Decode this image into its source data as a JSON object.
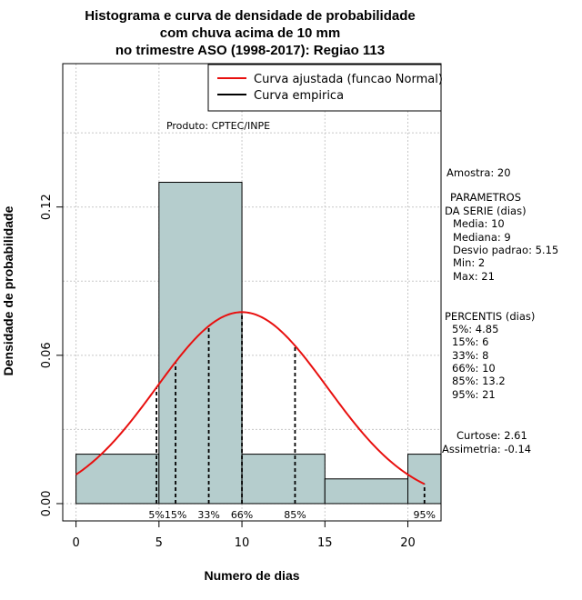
{
  "chart_data": {
    "type": "bar",
    "title_lines": [
      "Histograma e curva de densidade de probabilidade",
      "com chuva acima de 10 mm",
      "no trimestre ASO (1998-2017): Regiao 113"
    ],
    "xlabel": "Numero de dias",
    "ylabel": "Densidade de probabilidade",
    "xlim": [
      -0.8,
      22
    ],
    "ylim": [
      -0.007,
      0.178
    ],
    "x_ticks": [
      0,
      5,
      10,
      15,
      20
    ],
    "x_tick_labels": [
      "0",
      "5",
      "10",
      "15",
      "20"
    ],
    "y_ticks": [
      0.0,
      0.06,
      0.12
    ],
    "y_tick_labels": [
      "0.00",
      "0.06",
      "0.12"
    ],
    "grid": true,
    "grid_x": [
      0,
      5,
      10,
      15,
      20
    ],
    "grid_y": [
      0.0,
      0.03,
      0.06,
      0.09,
      0.12,
      0.15
    ],
    "histogram_bins": [
      {
        "x0": 0,
        "x1": 5,
        "density": 0.02
      },
      {
        "x0": 5,
        "x1": 10,
        "density": 0.13
      },
      {
        "x0": 10,
        "x1": 15,
        "density": 0.02
      },
      {
        "x0": 15,
        "x1": 20,
        "density": 0.01
      },
      {
        "x0": 20,
        "x1": 22,
        "density": 0.02
      }
    ],
    "fitted_curve": {
      "name": "Curva ajustada (funcao Normal)",
      "mean": 10,
      "sd": 5.15,
      "x_range": [
        0,
        21
      ],
      "color": "#e8100f"
    },
    "empirical_curve": {
      "name": "Curva empirica",
      "color": "#000000"
    },
    "legend": {
      "placement": "top-right",
      "entries": [
        "Curva ajustada (funcao Normal)",
        "Curva empirica"
      ]
    },
    "percentile_lines": [
      {
        "label": "5%",
        "x": 4.85
      },
      {
        "label": "15%",
        "x": 6
      },
      {
        "label": "33%",
        "x": 8
      },
      {
        "label": "66%",
        "x": 10
      },
      {
        "label": "85%",
        "x": 13.2
      },
      {
        "label": "95%",
        "x": 21
      }
    ],
    "annotation": "Produto: CPTEC/INPE",
    "bar_color": "#b5cdcd"
  },
  "stats": {
    "amostra": "Amostra: 20",
    "parametros_title_1": "PARAMETROS",
    "parametros_title_2": "DA SERIE (dias)",
    "media": "Media: 10",
    "mediana": "Mediana: 9",
    "desvio": "Desvio padrao: 5.15",
    "min": "Min: 2",
    "max": "Max: 21",
    "percentis_title": "PERCENTIS (dias)",
    "p5": "5%: 4.85",
    "p15": "15%: 6",
    "p33": "33%: 8",
    "p66": "66%: 10",
    "p85": "85%: 13.2",
    "p95": "95%: 21",
    "curtose": "Curtose: 2.61",
    "assimetria": "Assimetria: -0.14"
  }
}
